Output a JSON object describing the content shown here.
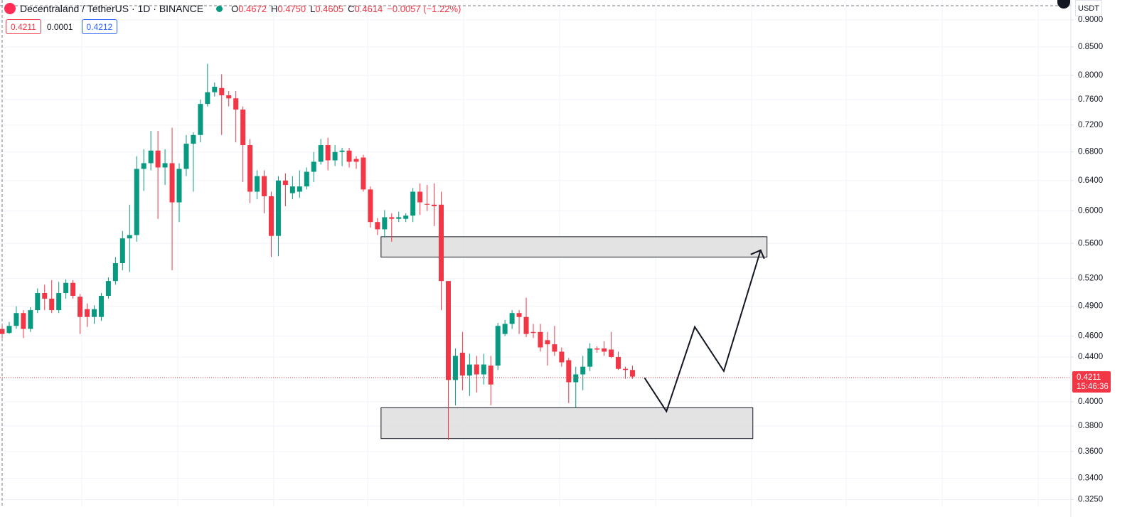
{
  "chart_data": {
    "type": "candlestick",
    "title": "Decentraland / TetherUS · 1D · BINANCE",
    "ohlc_legend": [
      {
        "label": "O",
        "value": "0.4672"
      },
      {
        "label": "H",
        "value": "0.4750"
      },
      {
        "label": "L",
        "value": "0.4605"
      },
      {
        "label": "C",
        "value": "0.4614"
      }
    ],
    "change": "−0.0057 (−1.22%)",
    "bid": "0.4211",
    "spread": "0.0001",
    "ask": "0.4212",
    "currency": "USDT",
    "log_scale": true,
    "grid": true,
    "up_color": "#089981",
    "down_color": "#f23645",
    "ylim": [
      0.3204,
      0.939
    ],
    "yticks": [
      {
        "value": 0.9,
        "label": "0.9000"
      },
      {
        "value": 0.85,
        "label": "0.8500"
      },
      {
        "value": 0.8,
        "label": "0.8000"
      },
      {
        "value": 0.76,
        "label": "0.7600"
      },
      {
        "value": 0.72,
        "label": "0.7200"
      },
      {
        "value": 0.68,
        "label": "0.6800"
      },
      {
        "value": 0.64,
        "label": "0.6400"
      },
      {
        "value": 0.6,
        "label": "0.6000"
      },
      {
        "value": 0.56,
        "label": "0.5600"
      },
      {
        "value": 0.52,
        "label": "0.5200"
      },
      {
        "value": 0.49,
        "label": "0.4900"
      },
      {
        "value": 0.46,
        "label": "0.4600"
      },
      {
        "value": 0.44,
        "label": "0.4400"
      },
      {
        "value": 0.4,
        "label": "0.4000"
      },
      {
        "value": 0.38,
        "label": "0.3800"
      },
      {
        "value": 0.36,
        "label": "0.3600"
      },
      {
        "value": 0.34,
        "label": "0.3400"
      },
      {
        "value": 0.325,
        "label": "0.3250"
      }
    ],
    "open": [
      0.467,
      0.463,
      0.47,
      0.483,
      0.467,
      0.486,
      0.504,
      0.498,
      0.486,
      0.504,
      0.515,
      0.5,
      0.487,
      0.479,
      0.479,
      0.501,
      0.517,
      0.537,
      0.566,
      0.57,
      0.656,
      0.664,
      0.682,
      0.658,
      0.664,
      0.611,
      0.656,
      0.692,
      0.705,
      0.753,
      0.772,
      0.779,
      0.767,
      0.762,
      0.744,
      0.69,
      0.625,
      0.646,
      0.619,
      0.569,
      0.64,
      0.623,
      0.625,
      0.632,
      0.652,
      0.666,
      0.69,
      0.668,
      0.68,
      0.682,
      0.67,
      0.672,
      0.628,
      0.586,
      0.577,
      0.592,
      0.59,
      0.59,
      0.594,
      0.625,
      0.609,
      0.608,
      0.608,
      0.517,
      0.419,
      0.444,
      0.423,
      0.433,
      0.424,
      0.432,
      0.432,
      0.462,
      0.472,
      0.483,
      0.479,
      0.464,
      0.464,
      0.456,
      0.452,
      0.445,
      0.437,
      0.417,
      0.424,
      0.431,
      0.448,
      0.448,
      0.447,
      0.44,
      0.429,
      0.428
    ],
    "high": [
      0.47,
      0.474,
      0.49,
      0.486,
      0.489,
      0.509,
      0.513,
      0.518,
      0.516,
      0.519,
      0.518,
      0.503,
      0.493,
      0.491,
      0.504,
      0.521,
      0.544,
      0.575,
      0.608,
      0.674,
      0.684,
      0.711,
      0.711,
      0.684,
      0.716,
      0.664,
      0.705,
      0.709,
      0.76,
      0.82,
      0.788,
      0.802,
      0.774,
      0.774,
      0.749,
      0.699,
      0.654,
      0.654,
      0.625,
      0.646,
      0.65,
      0.646,
      0.654,
      0.658,
      0.68,
      0.699,
      0.701,
      0.69,
      0.686,
      0.686,
      0.674,
      0.676,
      0.632,
      0.591,
      0.601,
      0.597,
      0.599,
      0.597,
      0.63,
      0.636,
      0.634,
      0.636,
      0.625,
      0.517,
      0.448,
      0.464,
      0.443,
      0.441,
      0.443,
      0.441,
      0.473,
      0.476,
      0.486,
      0.486,
      0.499,
      0.472,
      0.472,
      0.464,
      0.47,
      0.449,
      0.439,
      0.431,
      0.441,
      0.453,
      0.45,
      0.455,
      0.464,
      0.445,
      0.431,
      0.432
    ],
    "low": [
      0.458,
      0.462,
      0.467,
      0.458,
      0.464,
      0.483,
      0.486,
      0.483,
      0.483,
      0.498,
      0.498,
      0.462,
      0.469,
      0.472,
      0.475,
      0.498,
      0.513,
      0.529,
      0.527,
      0.562,
      0.626,
      0.654,
      0.59,
      0.634,
      0.529,
      0.586,
      0.646,
      0.625,
      0.694,
      0.749,
      0.765,
      0.705,
      0.749,
      0.694,
      0.638,
      0.61,
      0.615,
      0.597,
      0.544,
      0.545,
      0.606,
      0.615,
      0.617,
      0.628,
      0.638,
      0.662,
      0.654,
      0.66,
      0.66,
      0.658,
      0.656,
      0.625,
      0.579,
      0.57,
      0.567,
      0.562,
      0.586,
      0.586,
      0.586,
      0.595,
      0.6,
      0.581,
      0.486,
      0.369,
      0.397,
      0.41,
      0.405,
      0.408,
      0.415,
      0.397,
      0.428,
      0.46,
      0.467,
      0.462,
      0.459,
      0.458,
      0.445,
      0.432,
      0.441,
      0.431,
      0.399,
      0.395,
      0.41,
      0.427,
      0.444,
      0.441,
      0.439,
      0.428,
      0.42,
      0.42
    ],
    "close": [
      0.462,
      0.47,
      0.483,
      0.467,
      0.486,
      0.504,
      0.498,
      0.486,
      0.504,
      0.515,
      0.501,
      0.479,
      0.479,
      0.487,
      0.501,
      0.517,
      0.537,
      0.566,
      0.57,
      0.656,
      0.664,
      0.682,
      0.658,
      0.664,
      0.611,
      0.656,
      0.692,
      0.705,
      0.753,
      0.772,
      0.781,
      0.767,
      0.762,
      0.744,
      0.69,
      0.625,
      0.646,
      0.619,
      0.569,
      0.64,
      0.634,
      0.632,
      0.632,
      0.652,
      0.666,
      0.69,
      0.668,
      0.68,
      0.682,
      0.666,
      0.666,
      0.628,
      0.586,
      0.577,
      0.592,
      0.59,
      0.592,
      0.594,
      0.625,
      0.611,
      0.608,
      0.606,
      0.517,
      0.419,
      0.441,
      0.423,
      0.433,
      0.424,
      0.433,
      0.415,
      0.47,
      0.472,
      0.483,
      0.479,
      0.462,
      0.463,
      0.449,
      0.452,
      0.445,
      0.435,
      0.417,
      0.424,
      0.431,
      0.448,
      0.447,
      0.445,
      0.44,
      0.429,
      0.428,
      0.422
    ],
    "last_price": {
      "value": 0.4211,
      "label": "0.4211"
    },
    "countdown": "15:46:36",
    "zones": [
      {
        "top": 0.568,
        "bottom": 0.544,
        "from": 53.5,
        "to": 108
      },
      {
        "top": 0.395,
        "bottom": 0.37,
        "from": 53.5,
        "to": 106
      }
    ],
    "projection": {
      "x": [
        90.7,
        93.8,
        97.8,
        101.9,
        107.1
      ],
      "values": [
        0.421,
        0.392,
        0.469,
        0.427,
        0.552
      ]
    }
  }
}
